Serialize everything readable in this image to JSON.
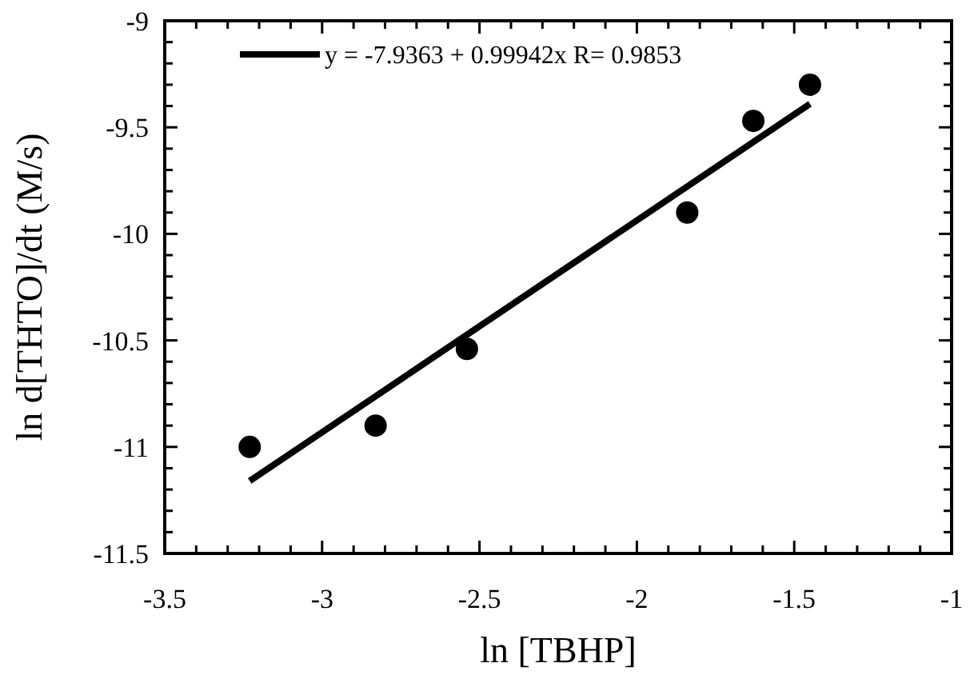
{
  "chart_data": {
    "type": "scatter",
    "xlabel": "ln [TBHP]",
    "ylabel": "ln d[THTO]/dt (M/s)",
    "xlim": [
      -3.5,
      -1
    ],
    "ylim": [
      -11.5,
      -9
    ],
    "xticks": [
      -3.5,
      {
        "value": -3.4,
        "label": null
      },
      {
        "value": -3.3,
        "label": null
      },
      {
        "value": -3.2,
        "label": null
      },
      {
        "value": -3.1,
        "label": null
      },
      -3,
      {
        "value": -2.9,
        "label": null
      },
      {
        "value": -2.8,
        "label": null
      },
      {
        "value": -2.7,
        "label": null
      },
      {
        "value": -2.6,
        "label": null
      },
      -2.5,
      {
        "value": -2.4,
        "label": null
      },
      {
        "value": -2.3,
        "label": null
      },
      {
        "value": -2.2,
        "label": null
      },
      {
        "value": -2.1,
        "label": null
      },
      -2,
      {
        "value": -1.9,
        "label": null
      },
      {
        "value": -1.8,
        "label": null
      },
      {
        "value": -1.7,
        "label": null
      },
      {
        "value": -1.6,
        "label": null
      },
      -1.5,
      {
        "value": -1.4,
        "label": null
      },
      {
        "value": -1.3,
        "label": null
      },
      {
        "value": -1.2,
        "label": null
      },
      {
        "value": -1.1,
        "label": null
      },
      -1
    ],
    "yticks": [
      -11.5,
      {
        "value": -11.4,
        "label": null
      },
      {
        "value": -11.3,
        "label": null
      },
      {
        "value": -11.2,
        "label": null
      },
      {
        "value": -11.1,
        "label": null
      },
      -11,
      {
        "value": -10.9,
        "label": null
      },
      {
        "value": -10.8,
        "label": null
      },
      {
        "value": -10.7,
        "label": null
      },
      {
        "value": -10.6,
        "label": null
      },
      -10.5,
      {
        "value": -10.4,
        "label": null
      },
      {
        "value": -10.3,
        "label": null
      },
      {
        "value": -10.2,
        "label": null
      },
      {
        "value": -10.1,
        "label": null
      },
      -10,
      {
        "value": -9.9,
        "label": null
      },
      {
        "value": -9.8,
        "label": null
      },
      {
        "value": -9.7,
        "label": null
      },
      {
        "value": -9.6,
        "label": null
      },
      -9.5,
      {
        "value": -9.4,
        "label": null
      },
      {
        "value": -9.3,
        "label": null
      },
      {
        "value": -9.2,
        "label": null
      },
      {
        "value": -9.1,
        "label": null
      },
      -9
    ],
    "grid": false,
    "legend": "top left",
    "marker": "circle",
    "series": [
      {
        "color": "#000000",
        "x": [
          -3.23,
          -2.83,
          -2.54,
          -1.84,
          -1.63,
          -1.45
        ],
        "values": [
          -11.0,
          -10.9,
          -10.54,
          -9.9,
          -9.47,
          -9.3
        ]
      },
      {
        "type": "line",
        "name": "y = -7.9363 + 0.99942x R= 0.9853",
        "color": "#000000",
        "line_style": "solid",
        "marker": "none",
        "x": [
          -3.23,
          -1.45
        ],
        "values": [
          -11.16,
          -9.39
        ]
      }
    ]
  }
}
